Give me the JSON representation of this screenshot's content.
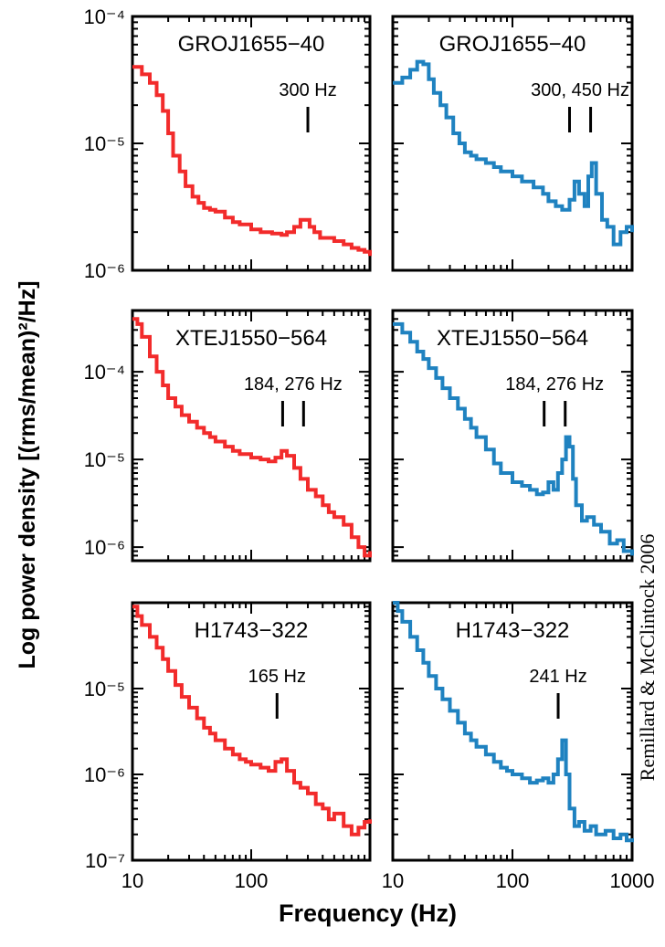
{
  "figure": {
    "ylabel": "Log power density [(rms/mean)²/Hz]",
    "xlabel": "Frequency (Hz)",
    "credit": "Remillard & McClintock 2006",
    "colors": {
      "left": "#f22b2b",
      "right": "#1f82c0",
      "frame": "#000000"
    }
  },
  "chart_data": [
    {
      "type": "line",
      "panel": "top-left",
      "title": "GROJ1655−40",
      "xlim": [
        10,
        1000
      ],
      "ylim": [
        1e-06,
        0.0001
      ],
      "xscale": "log",
      "yscale": "log",
      "ytick_labels": [
        "10⁻⁶",
        "10⁻⁵",
        "10⁻⁴"
      ],
      "ytick_values": [
        1e-06,
        1e-05,
        0.0001
      ],
      "xtick_labels": [],
      "marker_label": "300 Hz",
      "marker_freqs": [
        300
      ],
      "series": [
        {
          "color": "#f22b2b",
          "x": [
            10,
            12,
            14,
            16,
            18,
            20,
            22,
            25,
            28,
            32,
            36,
            40,
            45,
            50,
            60,
            70,
            80,
            100,
            120,
            150,
            180,
            200,
            230,
            260,
            290,
            310,
            340,
            380,
            420,
            500,
            600,
            700,
            800,
            900,
            1000
          ],
          "y": [
            4e-05,
            3.5e-05,
            3e-05,
            2.4e-05,
            1.8e-05,
            1.2e-05,
            8e-06,
            6e-06,
            4.6e-06,
            3.8e-06,
            3.4e-06,
            3.1e-06,
            3e-06,
            2.9e-06,
            2.6e-06,
            2.4e-06,
            2.3e-06,
            2.1e-06,
            2e-06,
            1.95e-06,
            1.9e-06,
            2e-06,
            2.2e-06,
            2.5e-06,
            2.5e-06,
            2.2e-06,
            2e-06,
            1.8e-06,
            1.8e-06,
            1.7e-06,
            1.6e-06,
            1.5e-06,
            1.45e-06,
            1.4e-06,
            1.3e-06
          ]
        }
      ]
    },
    {
      "type": "line",
      "panel": "top-right",
      "title": "GROJ1655−40",
      "xlim": [
        10,
        1000
      ],
      "ylim": [
        1e-06,
        0.0001
      ],
      "xscale": "log",
      "yscale": "log",
      "ytick_labels": [],
      "ytick_values": [
        1e-06,
        1e-05,
        0.0001
      ],
      "xtick_labels": [],
      "marker_label": "300, 450 Hz",
      "marker_freqs": [
        300,
        450
      ],
      "series": [
        {
          "color": "#1f82c0",
          "x": [
            10,
            12,
            14,
            16,
            18,
            20,
            22,
            25,
            28,
            32,
            36,
            40,
            45,
            50,
            60,
            70,
            80,
            100,
            120,
            150,
            180,
            200,
            230,
            260,
            300,
            330,
            360,
            400,
            430,
            460,
            500,
            560,
            620,
            700,
            800,
            900,
            1000
          ],
          "y": [
            3e-05,
            3.3e-05,
            3.8e-05,
            4.4e-05,
            4.2e-05,
            3.2e-05,
            2.5e-05,
            2e-05,
            1.6e-05,
            1.2e-05,
            1e-05,
            8.5e-06,
            8e-06,
            7.5e-06,
            7e-06,
            6.5e-06,
            6e-06,
            5.5e-06,
            5e-06,
            4.5e-06,
            4e-06,
            3.5e-06,
            3.2e-06,
            3e-06,
            3.6e-06,
            5e-06,
            4e-06,
            3.2e-06,
            5.5e-06,
            7e-06,
            4e-06,
            2.5e-06,
            2.2e-06,
            1.6e-06,
            2e-06,
            2.2e-06,
            2e-06
          ]
        }
      ]
    },
    {
      "type": "line",
      "panel": "middle-left",
      "title": "XTEJ1550−564",
      "xlim": [
        10,
        1000
      ],
      "ylim": [
        7e-07,
        0.0005
      ],
      "xscale": "log",
      "yscale": "log",
      "ytick_labels": [
        "10⁻⁶",
        "10⁻⁵",
        "10⁻⁴"
      ],
      "ytick_values": [
        1e-06,
        1e-05,
        0.0001
      ],
      "xtick_labels": [],
      "marker_label": "184, 276 Hz",
      "marker_freqs": [
        184,
        276
      ],
      "series": [
        {
          "color": "#f22b2b",
          "x": [
            10,
            11,
            12,
            14,
            16,
            18,
            20,
            23,
            26,
            30,
            35,
            40,
            45,
            50,
            60,
            70,
            80,
            100,
            120,
            140,
            160,
            180,
            200,
            230,
            260,
            300,
            350,
            400,
            450,
            500,
            600,
            700,
            800,
            900,
            1000
          ],
          "y": [
            0.0004,
            0.00035,
            0.00025,
            0.00015,
            0.0001,
            7e-05,
            5e-05,
            4e-05,
            3.2e-05,
            2.7e-05,
            2.3e-05,
            2e-05,
            1.8e-05,
            1.6e-05,
            1.4e-05,
            1.25e-05,
            1.15e-05,
            1.05e-05,
            1e-05,
            9.5e-06,
            1.05e-05,
            1.25e-05,
            1.1e-05,
            8e-06,
            6e-06,
            4.5e-06,
            3.8e-06,
            3e-06,
            2.5e-06,
            2.2e-06,
            1.8e-06,
            1.3e-06,
            1e-06,
            8e-07,
            9e-07
          ]
        }
      ]
    },
    {
      "type": "line",
      "panel": "middle-right",
      "title": "XTEJ1550−564",
      "xlim": [
        10,
        1000
      ],
      "ylim": [
        7e-07,
        0.0005
      ],
      "xscale": "log",
      "yscale": "log",
      "ytick_labels": [],
      "ytick_values": [
        1e-06,
        1e-05,
        0.0001
      ],
      "xtick_labels": [],
      "marker_label": "184, 276 Hz",
      "marker_freqs": [
        184,
        276
      ],
      "series": [
        {
          "color": "#1f82c0",
          "x": [
            10,
            12,
            14,
            16,
            18,
            20,
            23,
            26,
            30,
            35,
            40,
            45,
            50,
            60,
            70,
            80,
            100,
            120,
            140,
            160,
            180,
            200,
            220,
            240,
            260,
            280,
            300,
            320,
            340,
            380,
            420,
            480,
            550,
            650,
            750,
            850,
            1000
          ],
          "y": [
            0.00035,
            0.00028,
            0.00022,
            0.00017,
            0.00014,
            0.00011,
            8.5e-05,
            6.5e-05,
            5e-05,
            3.8e-05,
            2.9e-05,
            2.3e-05,
            1.8e-05,
            1.3e-05,
            9e-06,
            7e-06,
            5.5e-06,
            5e-06,
            4.5e-06,
            4e-06,
            4.2e-06,
            5.5e-06,
            4.5e-06,
            7e-06,
            1e-05,
            1.8e-05,
            1.4e-05,
            6e-06,
            3e-06,
            2e-06,
            2.2e-06,
            1.8e-06,
            1.5e-06,
            1.1e-06,
            1.2e-06,
            9e-07,
            8e-07
          ]
        }
      ]
    },
    {
      "type": "line",
      "panel": "bottom-left",
      "title": "H1743−322",
      "xlim": [
        10,
        1000
      ],
      "ylim": [
        1e-07,
        0.0001
      ],
      "xscale": "log",
      "yscale": "log",
      "ytick_labels": [
        "10⁻⁷",
        "10⁻⁶",
        "10⁻⁵"
      ],
      "ytick_values": [
        1e-07,
        1e-06,
        1e-05
      ],
      "xtick_labels": [
        "10",
        "100",
        ""
      ],
      "marker_label": "165 Hz",
      "marker_freqs": [
        165
      ],
      "series": [
        {
          "color": "#f22b2b",
          "x": [
            10,
            11,
            12,
            14,
            16,
            18,
            20,
            23,
            26,
            30,
            35,
            40,
            45,
            50,
            60,
            70,
            80,
            90,
            100,
            120,
            140,
            160,
            180,
            200,
            230,
            260,
            300,
            350,
            400,
            450,
            500,
            600,
            700,
            800,
            900,
            1000
          ],
          "y": [
            9e-05,
            7e-05,
            5.5e-05,
            4e-05,
            3e-05,
            2.2e-05,
            1.6e-05,
            1.1e-05,
            8e-06,
            6e-06,
            4.5e-06,
            3.5e-06,
            3e-06,
            2.5e-06,
            2e-06,
            1.7e-06,
            1.5e-06,
            1.4e-06,
            1.3e-06,
            1.2e-06,
            1.1e-06,
            1.4e-06,
            1.5e-06,
            1.1e-06,
            8e-07,
            7e-07,
            6e-07,
            4.5e-07,
            4e-07,
            3e-07,
            3.5e-07,
            2.5e-07,
            2e-07,
            2.4e-07,
            2.8e-07,
            3e-07
          ]
        }
      ]
    },
    {
      "type": "line",
      "panel": "bottom-right",
      "title": "H1743−322",
      "xlim": [
        10,
        1000
      ],
      "ylim": [
        1e-07,
        0.0001
      ],
      "xscale": "log",
      "yscale": "log",
      "ytick_labels": [],
      "ytick_values": [
        1e-07,
        1e-06,
        1e-05
      ],
      "xtick_labels": [
        "10",
        "100",
        "1000"
      ],
      "marker_label": "241 Hz",
      "marker_freqs": [
        241
      ],
      "series": [
        {
          "color": "#1f82c0",
          "x": [
            10,
            11,
            12,
            14,
            16,
            18,
            20,
            23,
            26,
            30,
            35,
            40,
            45,
            50,
            60,
            70,
            80,
            90,
            100,
            120,
            140,
            160,
            180,
            200,
            220,
            240,
            260,
            280,
            300,
            330,
            360,
            400,
            450,
            500,
            600,
            700,
            800,
            900,
            1000
          ],
          "y": [
            0.0001,
            8e-05,
            6e-05,
            4e-05,
            2.8e-05,
            2e-05,
            1.4e-05,
            1e-05,
            7.5e-06,
            5.5e-06,
            4e-06,
            3e-06,
            2.5e-06,
            2.1e-06,
            1.7e-06,
            1.4e-06,
            1.2e-06,
            1.1e-06,
            1e-06,
            9e-07,
            8e-07,
            8.5e-07,
            9e-07,
            8e-07,
            1e-06,
            1.5e-06,
            2.5e-06,
            1e-06,
            4e-07,
            2.5e-07,
            2.8e-07,
            2.2e-07,
            2.5e-07,
            2e-07,
            2.2e-07,
            1.8e-07,
            2e-07,
            1.7e-07,
            1.8e-07
          ]
        }
      ]
    }
  ]
}
